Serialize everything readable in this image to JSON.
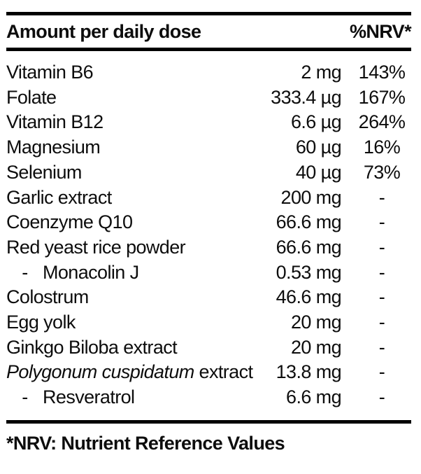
{
  "colors": {
    "background": "#ffffff",
    "text": "#0d0d0d",
    "rule": "#000000"
  },
  "table": {
    "header": {
      "label": "Amount per daily dose",
      "nrv_label": "%NRV*"
    },
    "rows": [
      {
        "name": "Vitamin B6",
        "amount": "2 mg",
        "nrv": "143%"
      },
      {
        "name": "Folate",
        "amount": "333.4 µg",
        "nrv": "167%"
      },
      {
        "name": "Vitamin B12",
        "amount": "6.6 µg",
        "nrv": "264%"
      },
      {
        "name": "Magnesium",
        "amount": "60 µg",
        "nrv": "16%"
      },
      {
        "name": "Selenium",
        "amount": "40 µg",
        "nrv": "73%"
      },
      {
        "name": "Garlic extract",
        "amount": "200 mg",
        "nrv": "-"
      },
      {
        "name": "Coenzyme Q10",
        "amount": "66.6 mg",
        "nrv": "-"
      },
      {
        "name": "Red yeast rice powder",
        "amount": "66.6 mg",
        "nrv": "-"
      },
      {
        "prefix": "-",
        "name": "Monacolin J",
        "amount": "0.53 mg",
        "nrv": "-"
      },
      {
        "name": "Colostrum",
        "amount": "46.6 mg",
        "nrv": "-"
      },
      {
        "name": "Egg yolk",
        "amount": "20 mg",
        "nrv": "-"
      },
      {
        "name": "Ginkgo Biloba extract",
        "amount": "20 mg",
        "nrv": "-"
      },
      {
        "name_italic": "Polygonum cuspidatum",
        "name": " extract",
        "amount": "13.8 mg",
        "nrv": "-"
      },
      {
        "prefix": "-",
        "name": "Resveratrol",
        "amount": "6.6 mg",
        "nrv": "-"
      }
    ],
    "footnote": "*NRV: Nutrient Reference Values"
  }
}
